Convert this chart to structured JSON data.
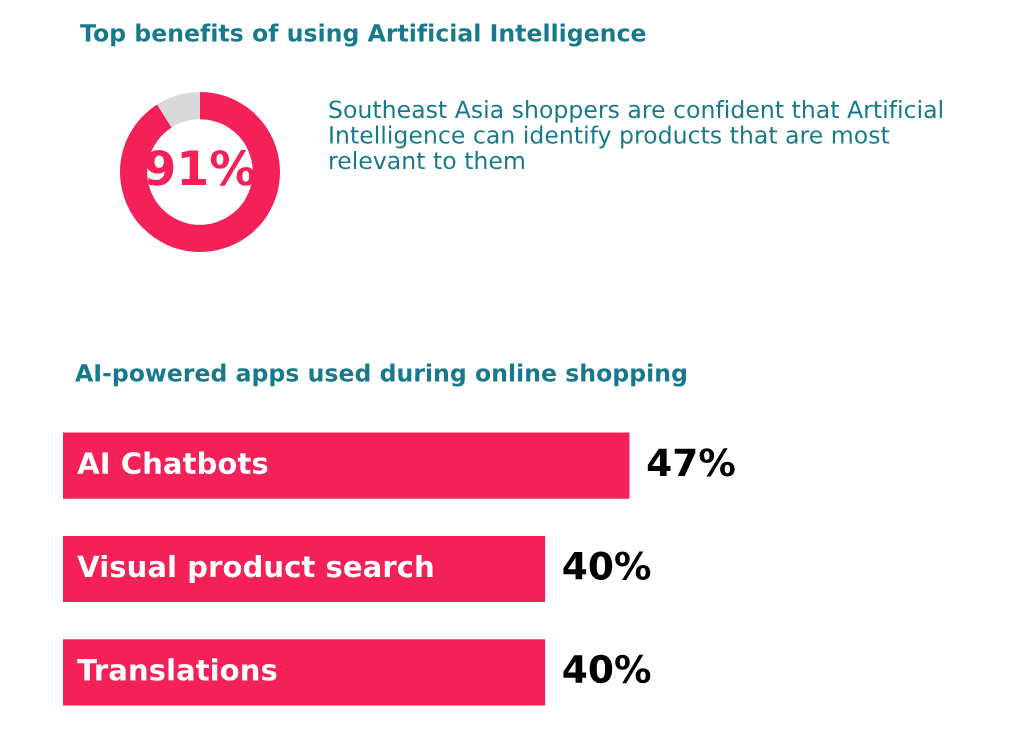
{
  "chart_data": [
    {
      "type": "donut",
      "title": "Top benefits of using Artificial Intelligence",
      "categories": [
        null,
        null
      ],
      "values": [
        91,
        9
      ],
      "colors": [
        "#f42058",
        "#d9d9d9"
      ],
      "value_labels": [
        "91%",
        null
      ],
      "annotations": [
        "Southeast Asia shoppers are confident that Artificial Intelligence can identify products that are most relevant to them"
      ],
      "legend": false
    },
    {
      "type": "bar",
      "orientation": "horizontal",
      "title": "AI-powered apps used during online shopping",
      "categories": [
        "AI Chatbots",
        "Visual product search",
        "Translations"
      ],
      "values": [
        47,
        40,
        40
      ],
      "color": "#f42058",
      "value_labels": [
        "47%",
        "40%",
        "40%"
      ],
      "legend": false
    }
  ]
}
